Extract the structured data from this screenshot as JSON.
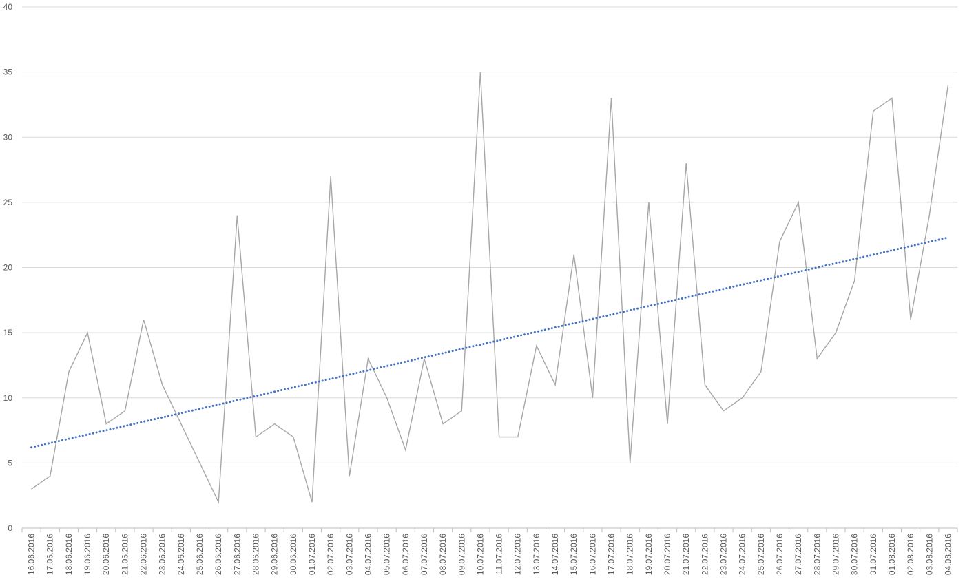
{
  "chart_data": {
    "type": "line",
    "title": "",
    "xlabel": "",
    "ylabel": "",
    "ylim": [
      0,
      40
    ],
    "y_ticks": [
      0,
      5,
      10,
      15,
      20,
      25,
      30,
      35,
      40
    ],
    "grid": "horizontal",
    "legend": "none",
    "categories": [
      "16.06.2016",
      "17.06.2016",
      "18.06.2016",
      "19.06.2016",
      "20.06.2016",
      "21.06.2016",
      "22.06.2016",
      "23.06.2016",
      "24.06.2016",
      "25.06.2016",
      "26.06.2016",
      "27.06.2016",
      "28.06.2016",
      "29.06.2016",
      "30.06.2016",
      "01.07.2016",
      "02.07.2016",
      "03.07.2016",
      "04.07.2016",
      "05.07.2016",
      "06.07.2016",
      "07.07.2016",
      "08.07.2016",
      "09.07.2016",
      "10.07.2016",
      "11.07.2016",
      "12.07.2016",
      "13.07.2016",
      "14.07.2016",
      "15.07.2016",
      "16.07.2016",
      "17.07.2016",
      "18.07.2016",
      "19.07.2016",
      "20.07.2016",
      "21.07.2016",
      "22.07.2016",
      "23.07.2016",
      "24.07.2016",
      "25.07.2016",
      "26.07.2016",
      "27.07.2016",
      "28.07.2016",
      "29.07.2016",
      "30.07.2016",
      "31.07.2016",
      "01.08.2016",
      "02.08.2016",
      "03.08.2016",
      "04.08.2016"
    ],
    "series": [
      {
        "color": "#a6a6a6",
        "style": "solid",
        "values": [
          3,
          4,
          12,
          15,
          8,
          9,
          16,
          11,
          8,
          5,
          2,
          24,
          7,
          8,
          7,
          2,
          27,
          4,
          13,
          10,
          6,
          13,
          8,
          9,
          35,
          7,
          7,
          14,
          11,
          21,
          10,
          33,
          5,
          25,
          8,
          28,
          11,
          9,
          10,
          12,
          22,
          25,
          13,
          15,
          19,
          32,
          33,
          16,
          24,
          34
        ]
      },
      {
        "color": "#4472c4",
        "style": "dotted",
        "kind": "linear-trendline",
        "start": 6.2,
        "end": 22.3
      }
    ],
    "colors": {
      "grid": "#d9d9d9",
      "axis": "#bfbfbf",
      "text": "#595959"
    }
  }
}
